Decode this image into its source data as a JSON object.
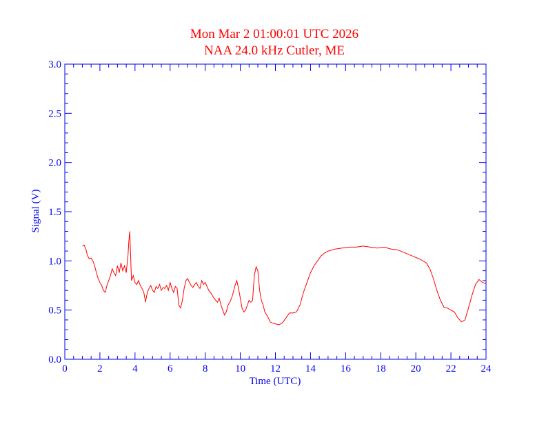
{
  "chart_data": {
    "type": "line",
    "title": "Mon Mar 2 01:00:01 UTC 2026",
    "subtitle": "NAA 24.0 kHz Cutler, ME",
    "xlabel": "Time (UTC)",
    "ylabel": "Signal (V)",
    "xlim": [
      0,
      24
    ],
    "ylim": [
      0.0,
      3.0
    ],
    "x_ticks": [
      0,
      2,
      4,
      6,
      8,
      10,
      12,
      14,
      16,
      18,
      20,
      22,
      24
    ],
    "x_tick_labels": [
      "0",
      "2",
      "4",
      "6",
      "8",
      "10",
      "12",
      "14",
      "16",
      "18",
      "20",
      "22",
      "24"
    ],
    "y_ticks": [
      0.0,
      0.5,
      1.0,
      1.5,
      2.0,
      2.5,
      3.0
    ],
    "y_tick_labels": [
      "0.0",
      "0.5",
      "1.0",
      "1.5",
      "2.0",
      "2.5",
      "3.0"
    ],
    "x_minor_step": 0.5,
    "y_minor_step": 0.1,
    "grid": false,
    "colors": {
      "axes": "#0000ee",
      "title": "#ff0000",
      "series": "#ff0000"
    },
    "series": [
      {
        "x": [
          1.0,
          1.1,
          1.2,
          1.3,
          1.4,
          1.5,
          1.6,
          1.7,
          1.8,
          1.9,
          2.0,
          2.1,
          2.2,
          2.3,
          2.4,
          2.5,
          2.6,
          2.7,
          2.8,
          2.9,
          3.0,
          3.1,
          3.2,
          3.3,
          3.4,
          3.5,
          3.6,
          3.65,
          3.7,
          3.75,
          3.8,
          3.9,
          4.0,
          4.1,
          4.2,
          4.3,
          4.4,
          4.5,
          4.6,
          4.7,
          4.8,
          4.9,
          5.0,
          5.1,
          5.2,
          5.3,
          5.4,
          5.5,
          5.6,
          5.7,
          5.8,
          5.9,
          6.0,
          6.1,
          6.2,
          6.3,
          6.4,
          6.5,
          6.6,
          6.7,
          6.8,
          6.9,
          7.0,
          7.1,
          7.2,
          7.3,
          7.4,
          7.5,
          7.6,
          7.7,
          7.8,
          7.9,
          8.0,
          8.1,
          8.2,
          8.3,
          8.4,
          8.5,
          8.6,
          8.7,
          8.8,
          8.9,
          9.0,
          9.1,
          9.2,
          9.3,
          9.4,
          9.5,
          9.6,
          9.7,
          9.8,
          9.9,
          10.0,
          10.1,
          10.2,
          10.3,
          10.4,
          10.5,
          10.6,
          10.7,
          10.8,
          10.9,
          11.0,
          11.1,
          11.2,
          11.3,
          11.4,
          11.5,
          11.6,
          11.7,
          11.8,
          12.0,
          12.2,
          12.4,
          12.6,
          12.8,
          13.0,
          13.2,
          13.4,
          13.6,
          13.8,
          14.0,
          14.2,
          14.4,
          14.6,
          14.8,
          15.0,
          15.4,
          15.8,
          16.2,
          16.6,
          17.0,
          17.4,
          17.8,
          18.2,
          18.6,
          19.0,
          19.4,
          19.8,
          20.2,
          20.6,
          20.8,
          21.0,
          21.2,
          21.4,
          21.6,
          21.8,
          22.0,
          22.2,
          22.4,
          22.6,
          22.8,
          23.0,
          23.2,
          23.4,
          23.6,
          23.8,
          24.0
        ],
        "y": [
          1.15,
          1.16,
          1.12,
          1.05,
          1.02,
          1.03,
          1.0,
          0.95,
          0.88,
          0.82,
          0.78,
          0.75,
          0.7,
          0.68,
          0.75,
          0.8,
          0.85,
          0.92,
          0.88,
          0.85,
          0.95,
          0.88,
          0.98,
          0.9,
          0.95,
          0.88,
          1.05,
          1.2,
          1.3,
          1.05,
          0.8,
          0.85,
          0.78,
          0.76,
          0.8,
          0.75,
          0.72,
          0.68,
          0.58,
          0.68,
          0.72,
          0.75,
          0.7,
          0.68,
          0.74,
          0.72,
          0.76,
          0.7,
          0.73,
          0.72,
          0.75,
          0.7,
          0.78,
          0.72,
          0.68,
          0.74,
          0.72,
          0.55,
          0.52,
          0.6,
          0.72,
          0.8,
          0.82,
          0.78,
          0.75,
          0.73,
          0.76,
          0.78,
          0.74,
          0.72,
          0.8,
          0.76,
          0.78,
          0.74,
          0.7,
          0.68,
          0.65,
          0.62,
          0.6,
          0.58,
          0.62,
          0.55,
          0.5,
          0.45,
          0.48,
          0.55,
          0.58,
          0.62,
          0.68,
          0.75,
          0.8,
          0.72,
          0.62,
          0.52,
          0.48,
          0.5,
          0.55,
          0.6,
          0.58,
          0.6,
          0.85,
          0.94,
          0.9,
          0.7,
          0.6,
          0.55,
          0.48,
          0.45,
          0.42,
          0.38,
          0.37,
          0.36,
          0.35,
          0.37,
          0.42,
          0.47,
          0.47,
          0.48,
          0.55,
          0.68,
          0.78,
          0.88,
          0.95,
          1.0,
          1.05,
          1.08,
          1.1,
          1.12,
          1.13,
          1.14,
          1.14,
          1.15,
          1.14,
          1.13,
          1.14,
          1.12,
          1.11,
          1.08,
          1.05,
          1.02,
          0.98,
          0.92,
          0.82,
          0.7,
          0.6,
          0.53,
          0.52,
          0.5,
          0.48,
          0.42,
          0.38,
          0.4,
          0.52,
          0.65,
          0.76,
          0.81,
          0.78,
          0.77
        ]
      }
    ]
  }
}
